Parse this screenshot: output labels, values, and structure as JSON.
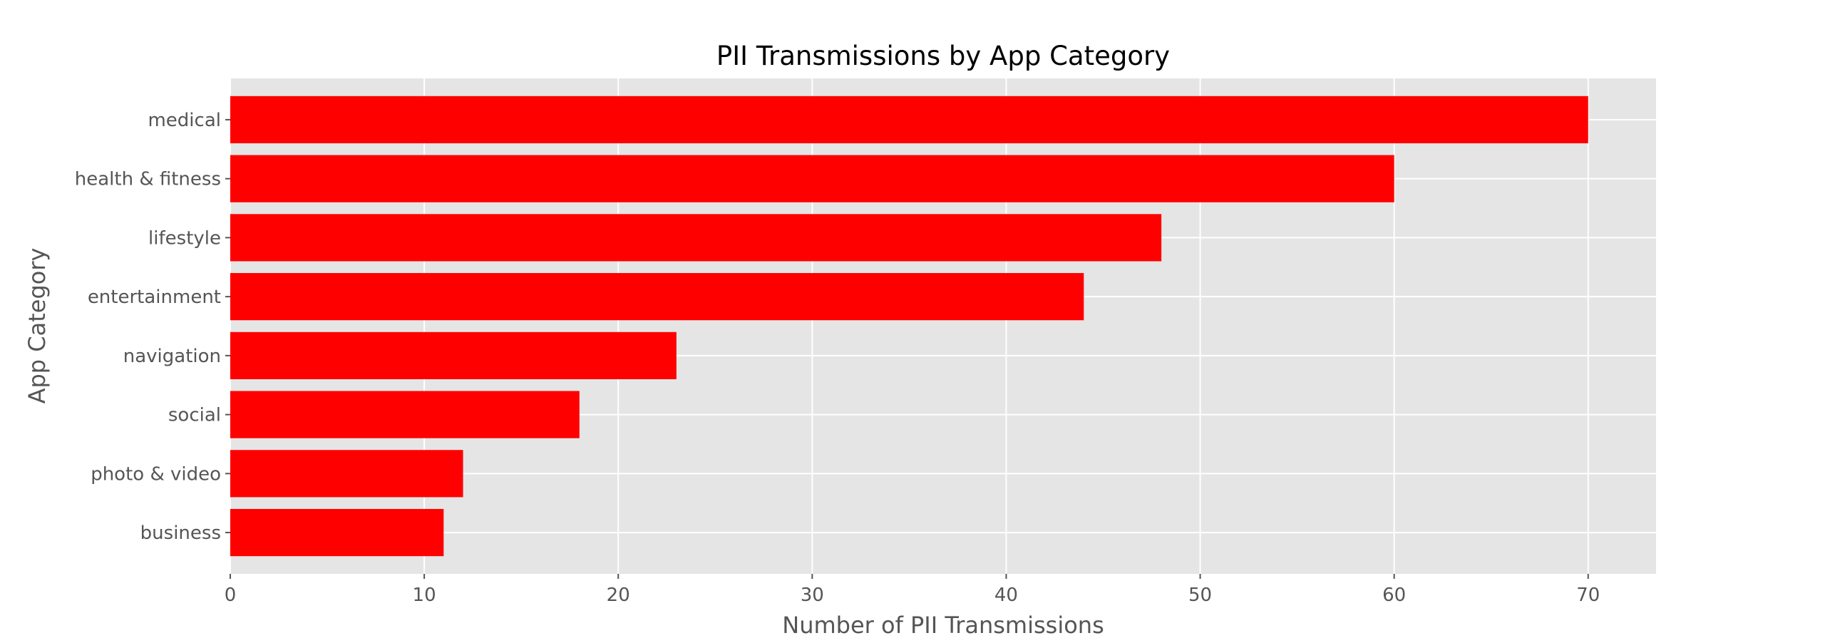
{
  "chart_data": {
    "type": "bar",
    "orientation": "horizontal",
    "title": "PII Transmissions by App Category",
    "xlabel": "Number of PII Transmissions",
    "ylabel": "App Category",
    "categories": [
      "medical",
      "health & fitness",
      "lifestyle",
      "entertainment",
      "navigation",
      "social",
      "photo & video",
      "business"
    ],
    "values": [
      70,
      60,
      48,
      44,
      23,
      18,
      12,
      11
    ],
    "xlim": [
      0,
      73.5
    ],
    "xticks": [
      0,
      10,
      20,
      30,
      40,
      50,
      60,
      70
    ],
    "grid": true,
    "legend": "none",
    "colors": {
      "bar": "#ff0000",
      "plot_background": "#e5e5e5",
      "grid": "#ffffff",
      "title_text": "#000000",
      "label_text": "#555555"
    }
  }
}
